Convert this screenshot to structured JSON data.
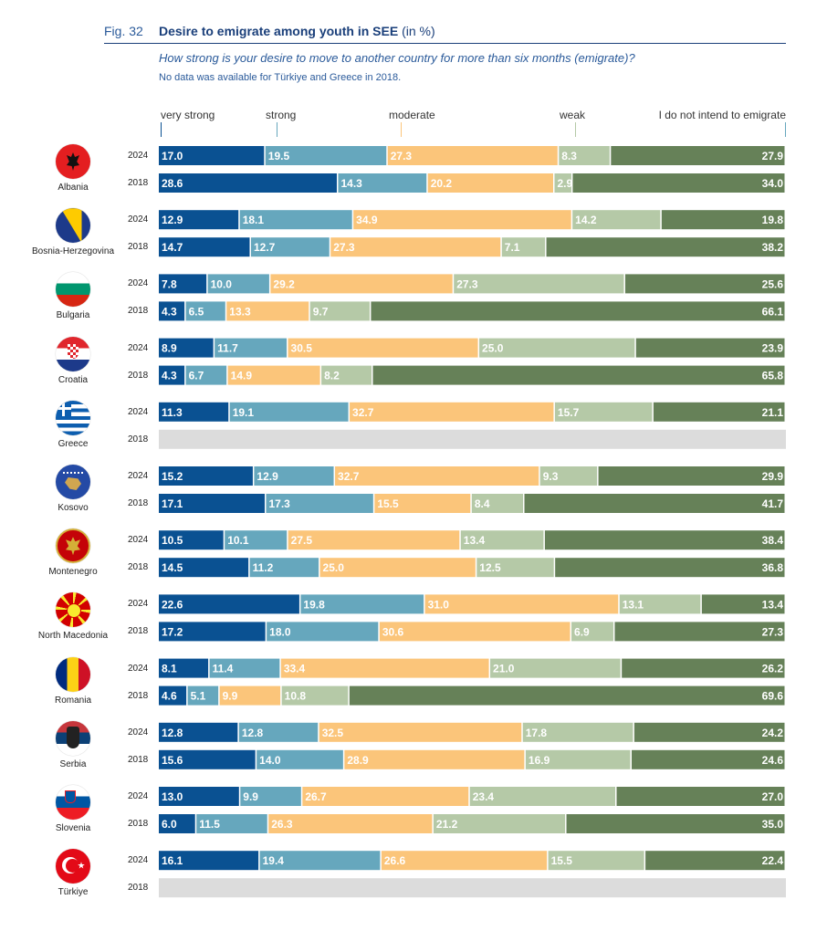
{
  "figure": {
    "label": "Fig. 32",
    "title": "Desire to emigrate among youth in SEE",
    "unit": "(in %)",
    "question": "How strong is your desire to move to another country for more than six months (emigrate)?",
    "note": "No data was available for Türkiye and Greece in 2018."
  },
  "colors": {
    "very_strong": "#0a5192",
    "strong": "#66a7bd",
    "moderate": "#fbc57a",
    "weak": "#b5c9a7",
    "no_intent": "#668158",
    "no_data": "#dcdcdc"
  },
  "chart_data": {
    "type": "bar",
    "orientation": "horizontal-stacked-100",
    "title": "Desire to emigrate among youth in SEE (in %)",
    "subtitle": "How strong is your desire to move to another country for more than six months (emigrate)?",
    "xlabel": "",
    "ylabel": "",
    "xlim": [
      0,
      100
    ],
    "grid": false,
    "legend_placement": "top",
    "legend": [
      "very strong",
      "strong",
      "moderate",
      "weak",
      "I do not intend to emigrate"
    ],
    "series_keys": [
      "very_strong",
      "strong",
      "moderate",
      "weak",
      "no_intent"
    ],
    "countries": [
      {
        "name": "Albania",
        "flag": "albania",
        "rows": [
          {
            "year": "2024",
            "values": [
              17.0,
              19.5,
              27.3,
              8.3,
              27.9
            ]
          },
          {
            "year": "2018",
            "values": [
              28.6,
              14.3,
              20.2,
              2.9,
              34.0
            ]
          }
        ]
      },
      {
        "name": "Bosnia-Herzegovina",
        "flag": "bosnia",
        "rows": [
          {
            "year": "2024",
            "values": [
              12.9,
              18.1,
              34.9,
              14.2,
              19.8
            ]
          },
          {
            "year": "2018",
            "values": [
              14.7,
              12.7,
              27.3,
              7.1,
              38.2
            ]
          }
        ]
      },
      {
        "name": "Bulgaria",
        "flag": "bulgaria",
        "rows": [
          {
            "year": "2024",
            "values": [
              7.8,
              10.0,
              29.2,
              27.3,
              25.6
            ]
          },
          {
            "year": "2018",
            "values": [
              4.3,
              6.5,
              13.3,
              9.7,
              66.1
            ]
          }
        ]
      },
      {
        "name": "Croatia",
        "flag": "croatia",
        "rows": [
          {
            "year": "2024",
            "values": [
              8.9,
              11.7,
              30.5,
              25.0,
              23.9
            ]
          },
          {
            "year": "2018",
            "values": [
              4.3,
              6.7,
              14.9,
              8.2,
              65.8
            ]
          }
        ]
      },
      {
        "name": "Greece",
        "flag": "greece",
        "rows": [
          {
            "year": "2024",
            "values": [
              11.3,
              19.1,
              32.7,
              15.7,
              21.1
            ]
          },
          {
            "year": "2018",
            "values": null
          }
        ]
      },
      {
        "name": "Kosovo",
        "flag": "kosovo",
        "rows": [
          {
            "year": "2024",
            "values": [
              15.2,
              12.9,
              32.7,
              9.3,
              29.9
            ]
          },
          {
            "year": "2018",
            "values": [
              17.1,
              17.3,
              15.5,
              8.4,
              41.7
            ]
          }
        ]
      },
      {
        "name": "Montenegro",
        "flag": "montenegro",
        "rows": [
          {
            "year": "2024",
            "values": [
              10.5,
              10.1,
              27.5,
              13.4,
              38.4
            ]
          },
          {
            "year": "2018",
            "values": [
              14.5,
              11.2,
              25.0,
              12.5,
              36.8
            ]
          }
        ]
      },
      {
        "name": "North Macedonia",
        "flag": "macedonia",
        "rows": [
          {
            "year": "2024",
            "values": [
              22.6,
              19.8,
              31.0,
              13.1,
              13.4
            ]
          },
          {
            "year": "2018",
            "values": [
              17.2,
              18.0,
              30.6,
              6.9,
              27.3
            ]
          }
        ]
      },
      {
        "name": "Romania",
        "flag": "romania",
        "rows": [
          {
            "year": "2024",
            "values": [
              8.1,
              11.4,
              33.4,
              21.0,
              26.2
            ]
          },
          {
            "year": "2018",
            "values": [
              4.6,
              5.1,
              9.9,
              10.8,
              69.6
            ]
          }
        ]
      },
      {
        "name": "Serbia",
        "flag": "serbia",
        "rows": [
          {
            "year": "2024",
            "values": [
              12.8,
              12.8,
              32.5,
              17.8,
              24.2
            ]
          },
          {
            "year": "2018",
            "values": [
              15.6,
              14.0,
              28.9,
              16.9,
              24.6
            ]
          }
        ]
      },
      {
        "name": "Slovenia",
        "flag": "slovenia",
        "rows": [
          {
            "year": "2024",
            "values": [
              13.0,
              9.9,
              26.7,
              23.4,
              27.0
            ]
          },
          {
            "year": "2018",
            "values": [
              6.0,
              11.5,
              26.3,
              21.2,
              35.0
            ]
          }
        ]
      },
      {
        "name": "Türkiye",
        "flag": "turkey",
        "rows": [
          {
            "year": "2024",
            "values": [
              16.1,
              19.4,
              26.6,
              15.5,
              22.4
            ]
          },
          {
            "year": "2018",
            "values": null
          }
        ]
      }
    ]
  }
}
